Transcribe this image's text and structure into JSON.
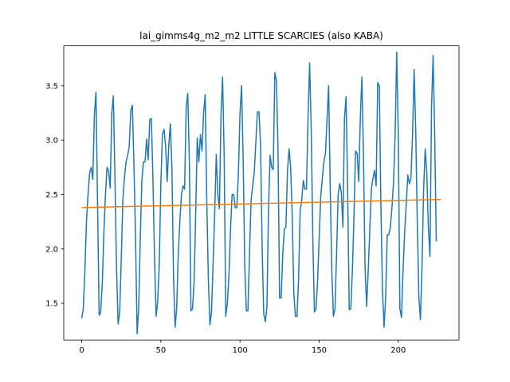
{
  "chart_data": {
    "type": "line",
    "title": "lai_gimms4g_m2_m2 LITTLE SCARCIES (also KABA)",
    "xlabel": "",
    "ylabel": "",
    "xlim": [
      -11.35,
      238.35
    ],
    "ylim": [
      1.1625,
      3.8675
    ],
    "xticks": [
      0,
      50,
      100,
      150,
      200
    ],
    "yticks": [
      1.5,
      2.0,
      2.5,
      3.0,
      3.5
    ],
    "ytick_labels": [
      "1.5",
      "2.0",
      "2.5",
      "3.0",
      "3.5"
    ],
    "grid": false,
    "legend": "none",
    "series": [
      {
        "color": "#1f77b4",
        "values": [
          1.36,
          1.45,
          1.8,
          2.25,
          2.5,
          2.7,
          2.75,
          2.64,
          3.23,
          3.44,
          2.43,
          1.39,
          1.42,
          1.68,
          2.15,
          2.5,
          2.75,
          2.72,
          2.56,
          3.25,
          3.41,
          2.65,
          1.82,
          1.31,
          1.42,
          1.92,
          2.45,
          2.66,
          2.8,
          2.86,
          2.94,
          3.27,
          3.32,
          2.77,
          2.1,
          1.22,
          1.46,
          2.1,
          2.63,
          2.8,
          2.8,
          3.01,
          2.82,
          3.19,
          3.2,
          2.64,
          1.92,
          1.38,
          1.52,
          1.86,
          2.6,
          3.05,
          3.1,
          2.95,
          2.62,
          2.95,
          3.15,
          2.74,
          1.74,
          1.28,
          1.46,
          1.95,
          2.25,
          2.5,
          2.58,
          2.55,
          3.3,
          3.43,
          2.8,
          1.43,
          1.45,
          1.7,
          2.32,
          3.02,
          2.8,
          3.05,
          2.9,
          3.25,
          3.42,
          2.45,
          1.72,
          1.3,
          1.42,
          1.87,
          2.32,
          2.87,
          2.5,
          2.37,
          3.25,
          3.58,
          2.85,
          1.38,
          1.5,
          1.75,
          2.18,
          2.5,
          2.5,
          2.38,
          2.38,
          2.7,
          3.25,
          3.5,
          2.82,
          1.85,
          1.43,
          1.43,
          1.95,
          2.45,
          2.58,
          2.7,
          2.98,
          3.26,
          3.26,
          2.95,
          2.0,
          1.4,
          1.33,
          1.46,
          2.36,
          2.86,
          2.75,
          2.73,
          3.62,
          3.55,
          2.92,
          1.55,
          1.55,
          1.95,
          2.18,
          2.2,
          2.72,
          2.92,
          2.75,
          2.3,
          1.6,
          1.38,
          1.38,
          1.72,
          2.35,
          2.45,
          2.63,
          2.55,
          2.55,
          3.22,
          3.71,
          3.1,
          2.1,
          1.42,
          1.45,
          1.7,
          2.1,
          2.48,
          2.65,
          2.8,
          2.88,
          3.2,
          3.5,
          2.55,
          1.8,
          1.38,
          1.45,
          1.95,
          2.5,
          2.6,
          2.52,
          2.2,
          3.2,
          3.4,
          2.55,
          1.44,
          1.45,
          1.8,
          2.3,
          2.9,
          2.88,
          2.62,
          3.2,
          3.58,
          2.86,
          1.83,
          1.47,
          1.8,
          2.18,
          2.55,
          2.65,
          2.72,
          2.58,
          3.53,
          3.5,
          2.4,
          1.62,
          1.28,
          1.55,
          2.13,
          2.13,
          2.2,
          2.38,
          2.62,
          3.05,
          3.81,
          3.05,
          1.45,
          1.37,
          1.8,
          2.15,
          2.4,
          2.68,
          2.6,
          2.65,
          3.05,
          3.65,
          3.1,
          2.25,
          1.55,
          1.35,
          1.85,
          2.55,
          2.92,
          2.7,
          2.2,
          1.93,
          3.3,
          3.78,
          3.05,
          2.07
        ]
      },
      {
        "color": "#ff7f0e",
        "x": [
          0,
          227
        ],
        "values": [
          2.38,
          2.455
        ]
      }
    ]
  }
}
